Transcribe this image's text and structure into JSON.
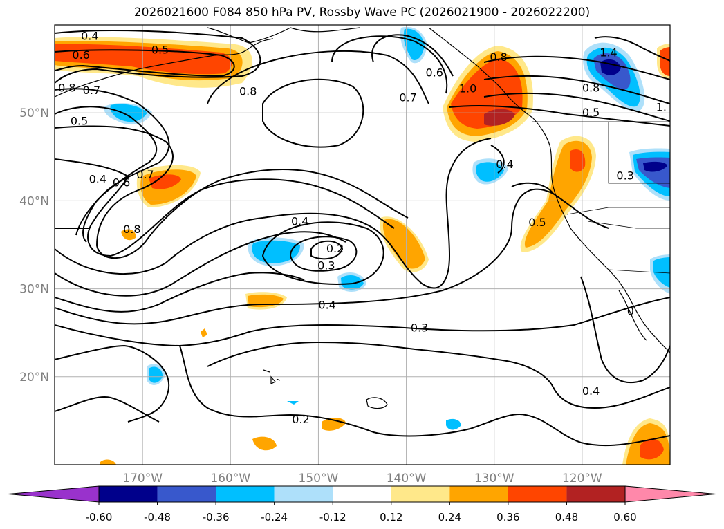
{
  "title": "2026021600 F084 850 hPa PV, Rossby Wave PC (2026021900 - 2026022200)",
  "map": {
    "lon_range": [
      -180,
      -110
    ],
    "lat_range": [
      10,
      60
    ],
    "lon_ticks": [
      {
        "value": -170,
        "label": "170°W"
      },
      {
        "value": -160,
        "label": "160°W"
      },
      {
        "value": -150,
        "label": "150°W"
      },
      {
        "value": -140,
        "label": "140°W"
      },
      {
        "value": -130,
        "label": "130°W"
      },
      {
        "value": -120,
        "label": "120°W"
      }
    ],
    "lat_ticks": [
      {
        "value": 20,
        "label": "20°N"
      },
      {
        "value": 30,
        "label": "30°N"
      },
      {
        "value": 40,
        "label": "40°N"
      },
      {
        "value": 50,
        "label": "50°N"
      }
    ],
    "grid": true,
    "tick_color": "#808080"
  },
  "colorbar": {
    "labels": [
      "-0.60",
      "-0.48",
      "-0.36",
      "-0.24",
      "-0.12",
      "0.12",
      "0.24",
      "0.36",
      "0.48",
      "0.60"
    ],
    "under_color": "#9932cc",
    "over_color": "#ff88aa",
    "colors": [
      "#00008b",
      "#3858cc",
      "#00bfff",
      "#aee0fa",
      "#ffffff",
      "#ffe88a",
      "#ffa500",
      "#ff4500",
      "#b22222"
    ]
  },
  "contour_labels": [
    {
      "text": "0.4",
      "lon": -176,
      "lat": 58.8
    },
    {
      "text": "0.6",
      "lon": -177,
      "lat": 56.6
    },
    {
      "text": "0.5",
      "lon": -168,
      "lat": 57.2
    },
    {
      "text": "0.8",
      "lon": -178.6,
      "lat": 52.9
    },
    {
      "text": "0.7",
      "lon": -175.8,
      "lat": 52.6
    },
    {
      "text": "0.8",
      "lon": -158,
      "lat": 52.5
    },
    {
      "text": "0.7",
      "lon": -139.8,
      "lat": 51.8
    },
    {
      "text": "0.6",
      "lon": -136.8,
      "lat": 54.6
    },
    {
      "text": "0.8",
      "lon": -129.5,
      "lat": 56.4
    },
    {
      "text": "1.0",
      "lon": -133,
      "lat": 52.8
    },
    {
      "text": "0.8",
      "lon": -119,
      "lat": 52.9
    },
    {
      "text": "0.5",
      "lon": -119,
      "lat": 50.1
    },
    {
      "text": "1.4",
      "lon": -117,
      "lat": 56.9
    },
    {
      "text": "1.",
      "lon": -111,
      "lat": 50.7
    },
    {
      "text": "0.5",
      "lon": -177.2,
      "lat": 49.1
    },
    {
      "text": "0.4",
      "lon": -175.1,
      "lat": 42.5
    },
    {
      "text": "0.6",
      "lon": -172.4,
      "lat": 42.1
    },
    {
      "text": "0.7",
      "lon": -169.7,
      "lat": 43.0
    },
    {
      "text": "0.8",
      "lon": -171.2,
      "lat": 36.8
    },
    {
      "text": "0.4",
      "lon": -128.8,
      "lat": 44.2
    },
    {
      "text": "0.3",
      "lon": -115.1,
      "lat": 42.9
    },
    {
      "text": "0.5",
      "lon": -125.1,
      "lat": 37.6
    },
    {
      "text": "0.4",
      "lon": -152.1,
      "lat": 37.7
    },
    {
      "text": "0.2",
      "lon": -148.1,
      "lat": 34.6
    },
    {
      "text": "0.3",
      "lon": -149.1,
      "lat": 32.7
    },
    {
      "text": "0.4",
      "lon": -149.0,
      "lat": 28.2
    },
    {
      "text": "0.3",
      "lon": -138.5,
      "lat": 25.6
    },
    {
      "text": "0.4",
      "lon": -119.0,
      "lat": 18.4
    },
    {
      "text": "0.2",
      "lon": -152.0,
      "lat": 15.2
    },
    {
      "text": "0",
      "lon": -114.5,
      "lat": 27.5
    }
  ]
}
